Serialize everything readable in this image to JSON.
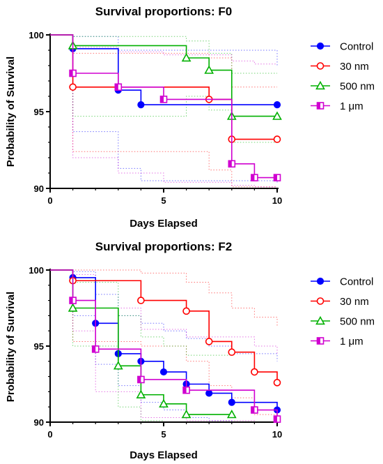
{
  "chart_data": [
    {
      "type": "line",
      "subtype": "kaplan-meier step",
      "title": "Survival proportions: F0",
      "xlabel": "Days Elapsed",
      "ylabel": "Probability of Survival",
      "xlim": [
        0,
        10
      ],
      "ylim": [
        90,
        100
      ],
      "xticks": [
        "0",
        "5",
        "10"
      ],
      "yticks": [
        "90",
        "95",
        "100"
      ],
      "grid": false,
      "legend_position": "right",
      "confidence_bands": "dotted",
      "series": [
        {
          "name": "Control",
          "color": "#0000ff",
          "marker": "filled-circle",
          "x": [
            0,
            1,
            3,
            4,
            10
          ],
          "y": [
            100,
            99.1,
            96.4,
            95.45,
            95.45
          ],
          "band_upper_x": [
            0,
            1,
            3,
            10
          ],
          "band_upper_y": [
            100,
            99.9,
            99.0,
            98.0
          ],
          "band_lower_x": [
            0,
            1,
            3,
            4,
            10
          ],
          "band_lower_y": [
            100,
            93.7,
            91.3,
            90.5,
            90.3
          ]
        },
        {
          "name": "30 nm",
          "color": "#ff0000",
          "marker": "open-circle",
          "x": [
            0,
            1,
            7,
            8,
            10
          ],
          "y": [
            100,
            96.6,
            95.8,
            93.2,
            93.2
          ],
          "band_upper_x": [
            0,
            1,
            7,
            8,
            10
          ],
          "band_upper_y": [
            100,
            98.8,
            98.5,
            96.6,
            96.6
          ],
          "band_lower_x": [
            0,
            1,
            7,
            8,
            10
          ],
          "band_lower_y": [
            100,
            92.4,
            91.2,
            90.1,
            90.1
          ]
        },
        {
          "name": "500 nm",
          "color": "#00b000",
          "marker": "open-triangle",
          "x": [
            0,
            1,
            6,
            7,
            8,
            10
          ],
          "y": [
            100,
            99.3,
            98.5,
            97.7,
            94.7,
            94.7
          ],
          "band_upper_x": [
            0,
            1,
            6,
            7,
            8,
            10
          ],
          "band_upper_y": [
            100,
            99.9,
            99.6,
            98.8,
            97.5,
            97.5
          ],
          "band_lower_x": [
            0,
            1,
            6,
            7,
            8,
            10
          ],
          "band_lower_y": [
            100,
            94.7,
            96.0,
            95.1,
            93.0,
            93.0
          ]
        },
        {
          "name": "1 μm",
          "color": "#d000d0",
          "marker": "half-square",
          "x": [
            0,
            1,
            3,
            5,
            8,
            9,
            10
          ],
          "y": [
            100,
            97.5,
            96.6,
            95.8,
            91.6,
            90.7,
            90.7
          ],
          "band_upper_x": [
            0,
            1,
            3,
            5,
            8,
            9,
            10
          ],
          "band_upper_y": [
            100,
            99.2,
            98.9,
            98.7,
            98.3,
            98.1,
            98.1
          ],
          "band_lower_x": [
            0,
            1,
            3,
            5,
            8,
            9,
            10
          ],
          "band_lower_y": [
            100,
            92.0,
            91.0,
            90.4,
            90.2,
            90.1,
            90.1
          ]
        }
      ]
    },
    {
      "type": "line",
      "subtype": "kaplan-meier step",
      "title": "Survival proportions: F2",
      "xlabel": "Days Elapsed",
      "ylabel": "Probability of Survival",
      "xlim": [
        0,
        10
      ],
      "ylim": [
        90,
        100
      ],
      "xticks": [
        "0",
        "5",
        "10"
      ],
      "yticks": [
        "90",
        "95",
        "100"
      ],
      "grid": false,
      "legend_position": "right",
      "confidence_bands": "dotted",
      "series": [
        {
          "name": "Control",
          "color": "#0000ff",
          "marker": "filled-circle",
          "x": [
            0,
            1,
            2,
            3,
            4,
            5,
            6,
            7,
            8,
            10
          ],
          "y": [
            100,
            99.5,
            96.5,
            94.5,
            94.0,
            93.3,
            92.5,
            91.9,
            91.3,
            90.8
          ],
          "band_upper_x": [
            0,
            1,
            2,
            3,
            4,
            5,
            6,
            7,
            8,
            10
          ],
          "band_upper_y": [
            100,
            99.9,
            98.4,
            97.0,
            96.5,
            96.0,
            95.5,
            95.0,
            94.5,
            94.0
          ],
          "band_lower_x": [
            0,
            1,
            2,
            3,
            4,
            5,
            6,
            7,
            8,
            10
          ],
          "band_lower_y": [
            100,
            97.0,
            93.8,
            92.4,
            91.3,
            90.8,
            90.3,
            90.1,
            90.0,
            90.0
          ]
        },
        {
          "name": "30 nm",
          "color": "#ff0000",
          "marker": "open-circle",
          "x": [
            0,
            1,
            4,
            6,
            7,
            8,
            9,
            10
          ],
          "y": [
            100,
            99.3,
            98.0,
            97.3,
            95.3,
            94.6,
            93.3,
            92.6
          ],
          "band_upper_x": [
            0,
            1,
            4,
            6,
            7,
            8,
            9,
            10
          ],
          "band_upper_y": [
            100,
            100,
            99.8,
            99.2,
            98.5,
            97.5,
            96.9,
            96.3
          ],
          "band_lower_x": [
            0,
            1,
            4,
            6,
            7,
            8,
            9,
            10
          ],
          "band_lower_y": [
            100,
            95.3,
            95.0,
            94.0,
            92.4,
            91.6,
            90.5,
            90.1
          ]
        },
        {
          "name": "500 nm",
          "color": "#00b000",
          "marker": "open-triangle",
          "x": [
            0,
            1,
            3,
            4,
            5,
            6,
            8
          ],
          "y": [
            100,
            97.5,
            93.7,
            91.8,
            91.2,
            90.5,
            90.5
          ],
          "band_upper_x": [
            0,
            1,
            3,
            4,
            5,
            6,
            8
          ],
          "band_upper_y": [
            100,
            99.2,
            97.0,
            95.6,
            95.0,
            94.4,
            94.4
          ],
          "band_lower_x": [
            0,
            1,
            3,
            4,
            5,
            6,
            8
          ],
          "band_lower_y": [
            100,
            95.0,
            91.0,
            90.1,
            90.0,
            90.0,
            90.0
          ]
        },
        {
          "name": "1 μm",
          "color": "#d000d0",
          "marker": "half-square",
          "x": [
            0,
            1,
            2,
            4,
            6,
            9,
            10
          ],
          "y": [
            100,
            98.0,
            94.8,
            92.8,
            92.1,
            90.8,
            90.2
          ],
          "band_upper_x": [
            0,
            1,
            2,
            4,
            6,
            9,
            10
          ],
          "band_upper_y": [
            100,
            99.7,
            97.5,
            96.1,
            95.6,
            95.0,
            94.5
          ],
          "band_lower_x": [
            0,
            1,
            2,
            4,
            6,
            9,
            10
          ],
          "band_lower_y": [
            100,
            96.0,
            92.0,
            90.3,
            90.1,
            90.0,
            90.0
          ]
        }
      ]
    }
  ]
}
